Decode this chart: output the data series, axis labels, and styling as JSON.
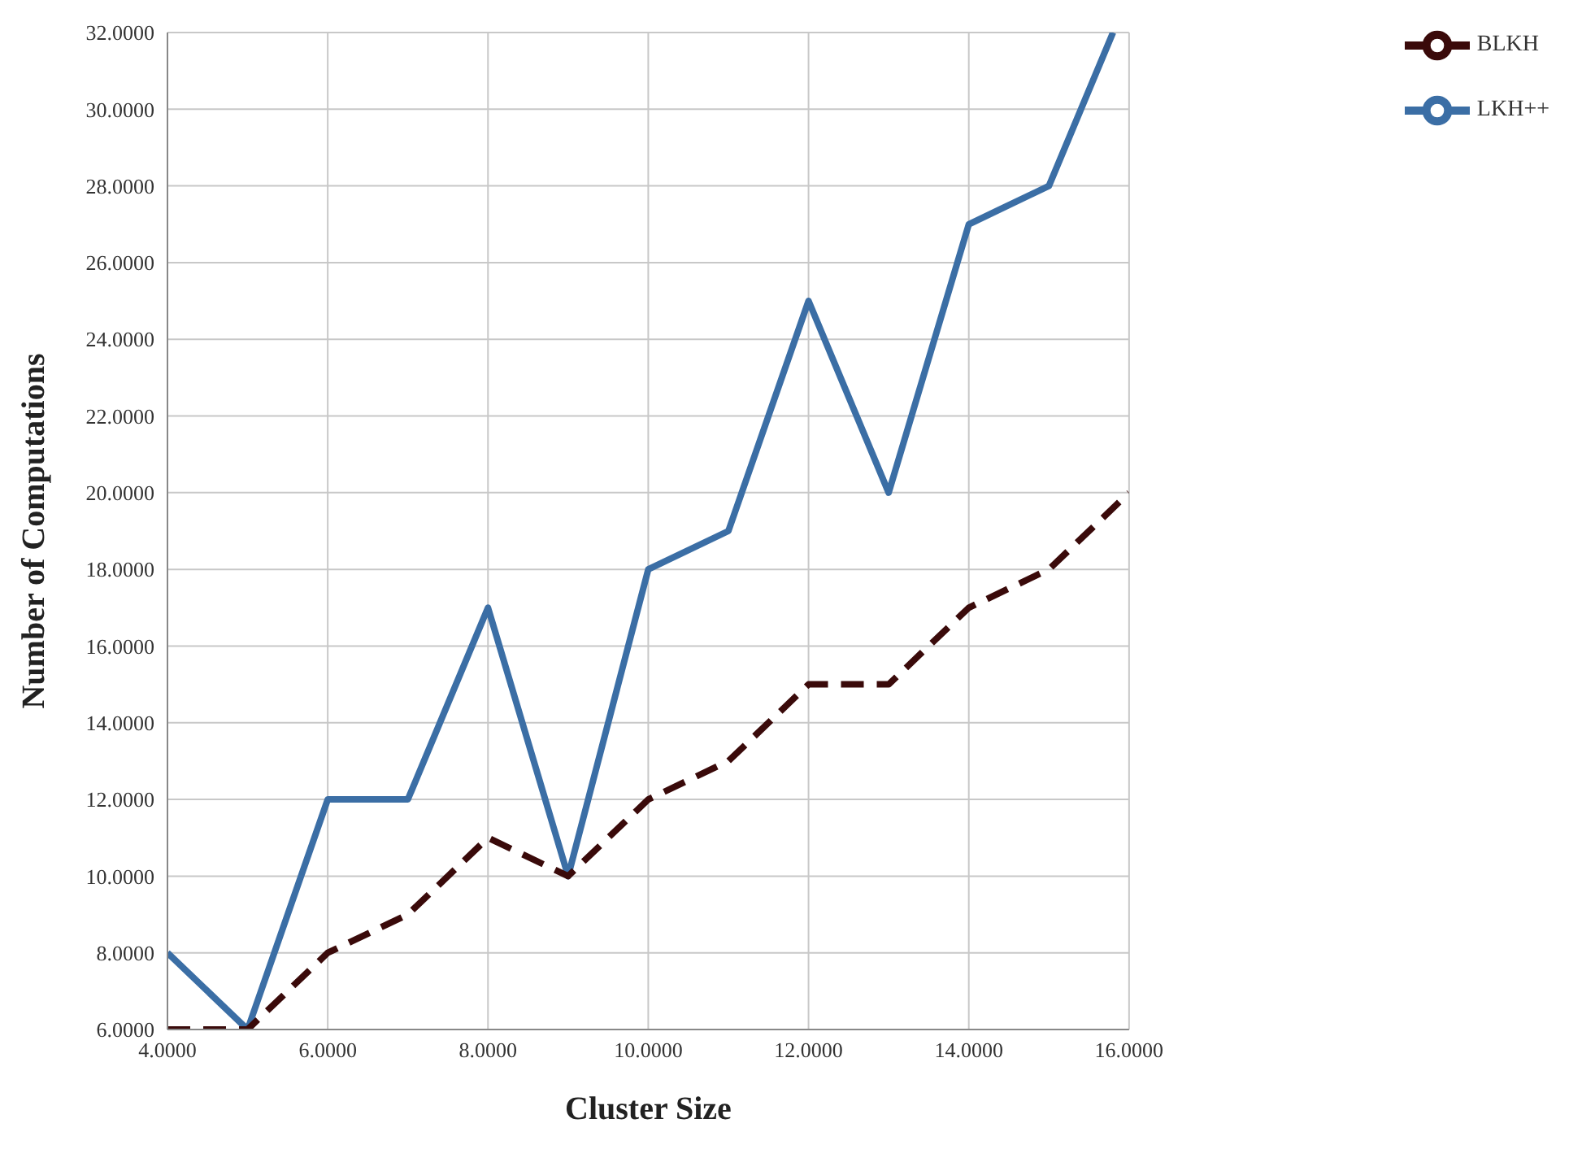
{
  "chart_data": {
    "type": "line",
    "xlabel": "Cluster Size",
    "ylabel": "Number of Computations",
    "series": [
      {
        "name": "LKH++",
        "color": "#3b6ea5",
        "line_style": "solid",
        "x": [
          4,
          5,
          6,
          7,
          8,
          9,
          10,
          11,
          12,
          13,
          14,
          15,
          15.8
        ],
        "values": [
          8,
          6,
          12,
          12,
          17,
          10,
          18,
          19,
          25,
          20,
          27,
          28,
          32
        ]
      },
      {
        "name": "BLKH",
        "color": "#3a0a0a",
        "line_style": "dashed",
        "x": [
          4,
          5,
          6,
          7,
          8,
          9,
          10,
          11,
          12,
          13,
          14,
          15,
          16
        ],
        "values": [
          6,
          6,
          8,
          9,
          11,
          10,
          12,
          13,
          15,
          15,
          17,
          18,
          20
        ]
      }
    ],
    "xlim": [
      4,
      16
    ],
    "xticks": [
      {
        "value": 4,
        "label": "4.0000"
      },
      {
        "value": 6,
        "label": "6.0000"
      },
      {
        "value": 8,
        "label": "8.0000"
      },
      {
        "value": 10,
        "label": "10.0000"
      },
      {
        "value": 12,
        "label": "12.0000"
      },
      {
        "value": 14,
        "label": "14.0000"
      },
      {
        "value": 16,
        "label": "16.0000"
      }
    ],
    "ylim": [
      6,
      32
    ],
    "yticks": [
      {
        "value": 6,
        "label": "6.0000"
      },
      {
        "value": 8,
        "label": "8.0000"
      },
      {
        "value": 10,
        "label": "10.0000"
      },
      {
        "value": 12,
        "label": "12.0000"
      },
      {
        "value": 14,
        "label": "14.0000"
      },
      {
        "value": 16,
        "label": "16.0000"
      },
      {
        "value": 18,
        "label": "18.0000"
      },
      {
        "value": 20,
        "label": "20.0000"
      },
      {
        "value": 22,
        "label": "22.0000"
      },
      {
        "value": 24,
        "label": "24.0000"
      },
      {
        "value": 26,
        "label": "26.0000"
      },
      {
        "value": 28,
        "label": "28.0000"
      },
      {
        "value": 30,
        "label": "30.0000"
      },
      {
        "value": 32,
        "label": "32.0000"
      }
    ],
    "grid": true,
    "legend": "top right",
    "marker": "none"
  }
}
